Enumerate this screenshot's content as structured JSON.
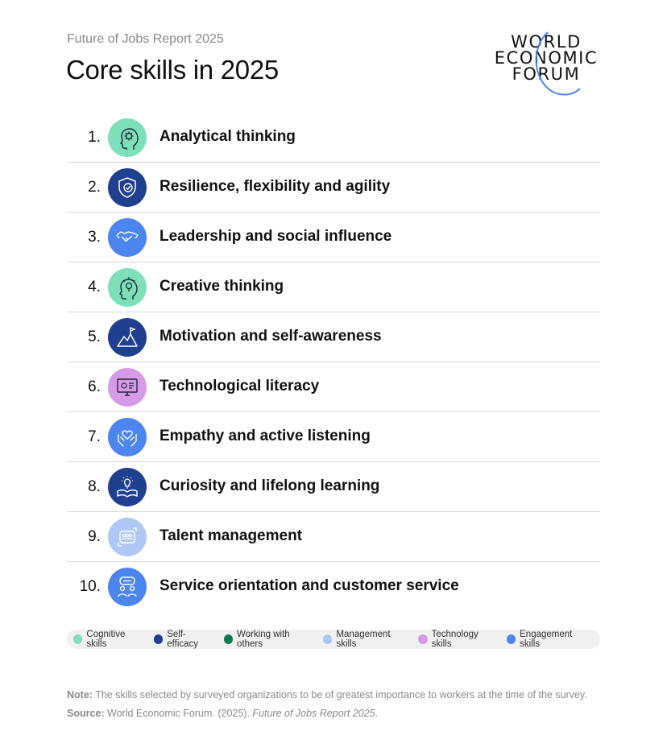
{
  "header": {
    "kicker": "Future of Jobs Report 2025",
    "title": "Core skills in 2025"
  },
  "logo": {
    "line1": "WORLD",
    "line2": "ECONOMIC",
    "line3": "FORUM"
  },
  "colors": {
    "cognitive": "#7ee0b8",
    "self_efficacy": "#1f3f8f",
    "working_with_others": "#0a7a4c",
    "management": "#aec8f5",
    "technology": "#d79ae8",
    "engagement": "#4b86f0"
  },
  "skills": [
    {
      "rank": "1.",
      "label": "Analytical thinking",
      "icon": "head-gears-icon",
      "color": "#7ee0b8"
    },
    {
      "rank": "2.",
      "label": "Resilience, flexibility and agility",
      "icon": "shield-check-icon",
      "color": "#1f3f8f"
    },
    {
      "rank": "3.",
      "label": "Leadership and social influence",
      "icon": "handshake-icon",
      "color": "#4b86f0"
    },
    {
      "rank": "4.",
      "label": "Creative thinking",
      "icon": "head-lightbulb-icon",
      "color": "#7ee0b8"
    },
    {
      "rank": "5.",
      "label": "Motivation and self-awareness",
      "icon": "mountain-flag-icon",
      "color": "#1f3f8f"
    },
    {
      "rank": "6.",
      "label": "Technological literacy",
      "icon": "computer-monitor-icon",
      "color": "#d79ae8"
    },
    {
      "rank": "7.",
      "label": "Empathy and active listening",
      "icon": "hands-heart-icon",
      "color": "#4b86f0"
    },
    {
      "rank": "8.",
      "label": "Curiosity and lifelong learning",
      "icon": "book-lightbulb-icon",
      "color": "#1f3f8f"
    },
    {
      "rank": "9.",
      "label": "Talent management",
      "icon": "people-cycle-icon",
      "color": "#aec8f5"
    },
    {
      "rank": "10.",
      "label": "Service orientation and customer service",
      "icon": "people-chat-icon",
      "color": "#4b86f0"
    }
  ],
  "legend": [
    {
      "label": "Cognitive skills",
      "color": "#7ee0b8"
    },
    {
      "label": "Self-efficacy",
      "color": "#1f3f8f"
    },
    {
      "label": "Working with others",
      "color": "#0a7a4c"
    },
    {
      "label": "Management skills",
      "color": "#aec8f5"
    },
    {
      "label": "Technology skills",
      "color": "#d79ae8"
    },
    {
      "label": "Engagement skills",
      "color": "#4b86f0"
    }
  ],
  "footer": {
    "note_label": "Note:",
    "note_text": " The skills selected by surveyed organizations to be of greatest importance to workers at the time of the survey.",
    "source_label": "Source:",
    "source_text": " World Economic Forum. (2025). ",
    "source_title": "Future of Jobs Report 2025",
    "source_end": "."
  }
}
